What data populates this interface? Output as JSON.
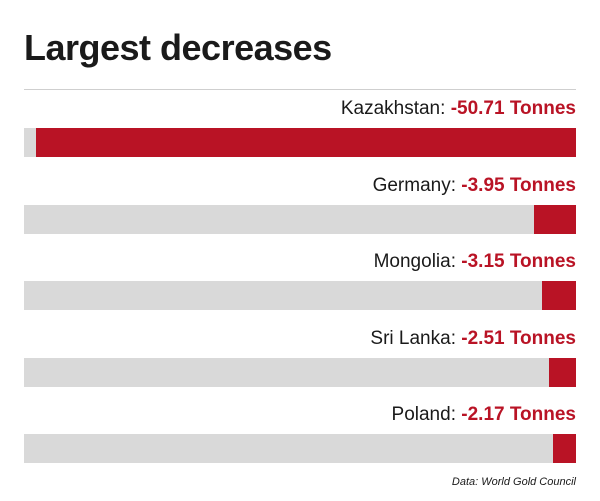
{
  "title": "Largest decreases",
  "source": "Data: World Gold Council",
  "colors": {
    "bar": "#b91325",
    "track": "#d9d9d9",
    "value_text": "#b91325"
  },
  "chart_data": {
    "type": "bar",
    "orientation": "horizontal",
    "title": "Largest decreases",
    "unit": "Tonnes",
    "xlim": [
      0,
      51.8
    ],
    "grid": false,
    "items": [
      {
        "country": "Kazakhstan",
        "value": -50.71,
        "value_label": "-50.71 Tonnes"
      },
      {
        "country": "Germany",
        "value": -3.95,
        "value_label": "-3.95 Tonnes"
      },
      {
        "country": "Mongolia",
        "value": -3.15,
        "value_label": "-3.15 Tonnes"
      },
      {
        "country": "Sri Lanka",
        "value": -2.51,
        "value_label": "-2.51 Tonnes"
      },
      {
        "country": "Poland",
        "value": -2.17,
        "value_label": "-2.17 Tonnes"
      }
    ]
  }
}
